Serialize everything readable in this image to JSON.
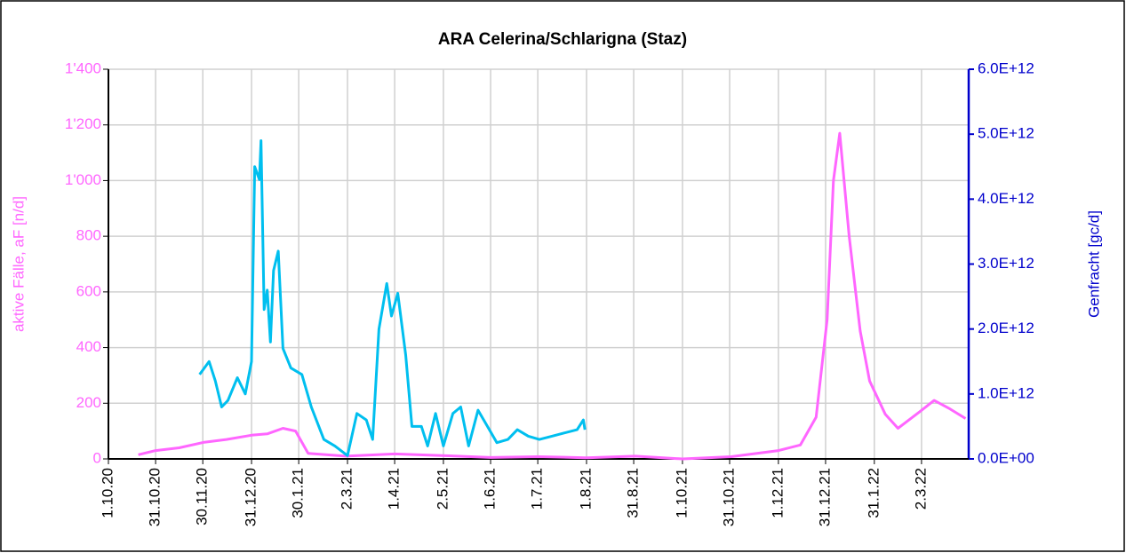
{
  "chart_data": {
    "type": "line",
    "title": "ARA Celerina/Schlarigna (Staz)",
    "ylabel": "aktive Fälle, aF [n/d]",
    "y2label": "Genfracht [gc/d]",
    "xlim": [
      "1.10.20",
      "1.4.22"
    ],
    "xticks": [
      "1.10.20",
      "31.10.20",
      "30.11.20",
      "31.12.20",
      "30.1.21",
      "2.3.21",
      "1.4.21",
      "2.5.21",
      "1.6.21",
      "1.7.21",
      "1.8.21",
      "31.8.21",
      "1.10.21",
      "31.10.21",
      "1.12.21",
      "31.12.21",
      "31.1.22",
      "2.3.22"
    ],
    "ylim": [
      0,
      1400
    ],
    "yticks": [
      0,
      200,
      400,
      600,
      800,
      {
        "value": 1000,
        "label": "1'000"
      },
      {
        "value": 1200,
        "label": "1'200"
      },
      {
        "value": 1400,
        "label": "1'400"
      }
    ],
    "y2lim": [
      0,
      6000000000000
    ],
    "y2ticks": [
      {
        "value": 0,
        "label": "0.0E+00"
      },
      {
        "value": 1000000000000,
        "label": "1.0E+12"
      },
      {
        "value": 2000000000000,
        "label": "2.0E+12"
      },
      {
        "value": 3000000000000,
        "label": "3.0E+12"
      },
      {
        "value": 4000000000000,
        "label": "4.0E+12"
      },
      {
        "value": 5000000000000,
        "label": "5.0E+12"
      },
      {
        "value": 6000000000000,
        "label": "6.0E+12"
      }
    ],
    "grid": true,
    "ycolor": "#ff66ff",
    "y2color": "#0000cc",
    "series": [
      {
        "color": "#ff66ff",
        "x": [
          "20.10.20",
          "31.10.20",
          "15.11.20",
          "1.12.20",
          "15.12.20",
          "31.12.20",
          "10.1.21",
          "20.1.21",
          "28.1.21",
          "5.2.21",
          "1.3.21",
          "1.4.21",
          "1.5.21",
          "1.6.21",
          "1.7.21",
          "1.8.21",
          "1.9.21",
          "1.10.21",
          "1.11.21",
          "1.12.21",
          "15.12.21",
          "25.12.21",
          "1.1.22",
          "5.1.22",
          "9.1.22",
          "15.1.22",
          "22.1.22",
          "28.1.22",
          "7.2.22",
          "15.2.22",
          "1.3.22",
          "10.3.22",
          "20.3.22",
          "30.3.22"
        ],
        "values": [
          15,
          30,
          40,
          60,
          70,
          85,
          90,
          110,
          100,
          20,
          10,
          18,
          12,
          5,
          8,
          4,
          10,
          0,
          8,
          30,
          50,
          150,
          500,
          1000,
          1170,
          800,
          460,
          280,
          160,
          110,
          170,
          210,
          180,
          145
        ]
      },
      {
        "color": "#00bfef",
        "axis": "y2",
        "x": [
          "28.11.20",
          "4.12.20",
          "8.12.20",
          "12.12.20",
          "16.12.20",
          "22.12.20",
          "27.12.20",
          "31.12.20",
          "2.1.21",
          "5.1.21",
          "6.1.21",
          "8.1.21",
          "10.1.21",
          "12.1.21",
          "14.1.21",
          "17.1.21",
          "20.1.21",
          "25.1.21",
          "1.2.21",
          "7.2.21",
          "15.2.21",
          "22.2.21",
          "2.3.21",
          "8.3.21",
          "14.3.21",
          "18.3.21",
          "22.3.21",
          "27.3.21",
          "30.3.21",
          "3.4.21",
          "8.4.21",
          "12.4.21",
          "18.4.21",
          "22.4.21",
          "27.4.21",
          "2.5.21",
          "8.5.21",
          "13.5.21",
          "18.5.21",
          "24.5.21",
          "30.5.21",
          "5.6.21",
          "12.6.21",
          "18.6.21",
          "25.6.21",
          "2.7.21",
          "10.7.21",
          "18.7.21",
          "26.7.21",
          "30.7.21",
          "31.7.21"
        ],
        "values": [
          1300000000000,
          1500000000000,
          1200000000000,
          800000000000,
          900000000000,
          1250000000000,
          1000000000000,
          1500000000000,
          4500000000000,
          4300000000000,
          4900000000000,
          2300000000000,
          2600000000000,
          1800000000000,
          2900000000000,
          3200000000000,
          1700000000000,
          1400000000000,
          1300000000000,
          800000000000,
          300000000000,
          200000000000,
          50000000000,
          700000000000,
          600000000000,
          300000000000,
          2000000000000,
          2700000000000,
          2200000000000,
          2550000000000,
          1600000000000,
          500000000000,
          500000000000,
          200000000000,
          700000000000,
          200000000000,
          700000000000,
          800000000000,
          200000000000,
          750000000000,
          500000000000,
          250000000000,
          300000000000,
          450000000000,
          350000000000,
          300000000000,
          350000000000,
          400000000000,
          450000000000,
          600000000000,
          450000000000
        ]
      }
    ]
  }
}
